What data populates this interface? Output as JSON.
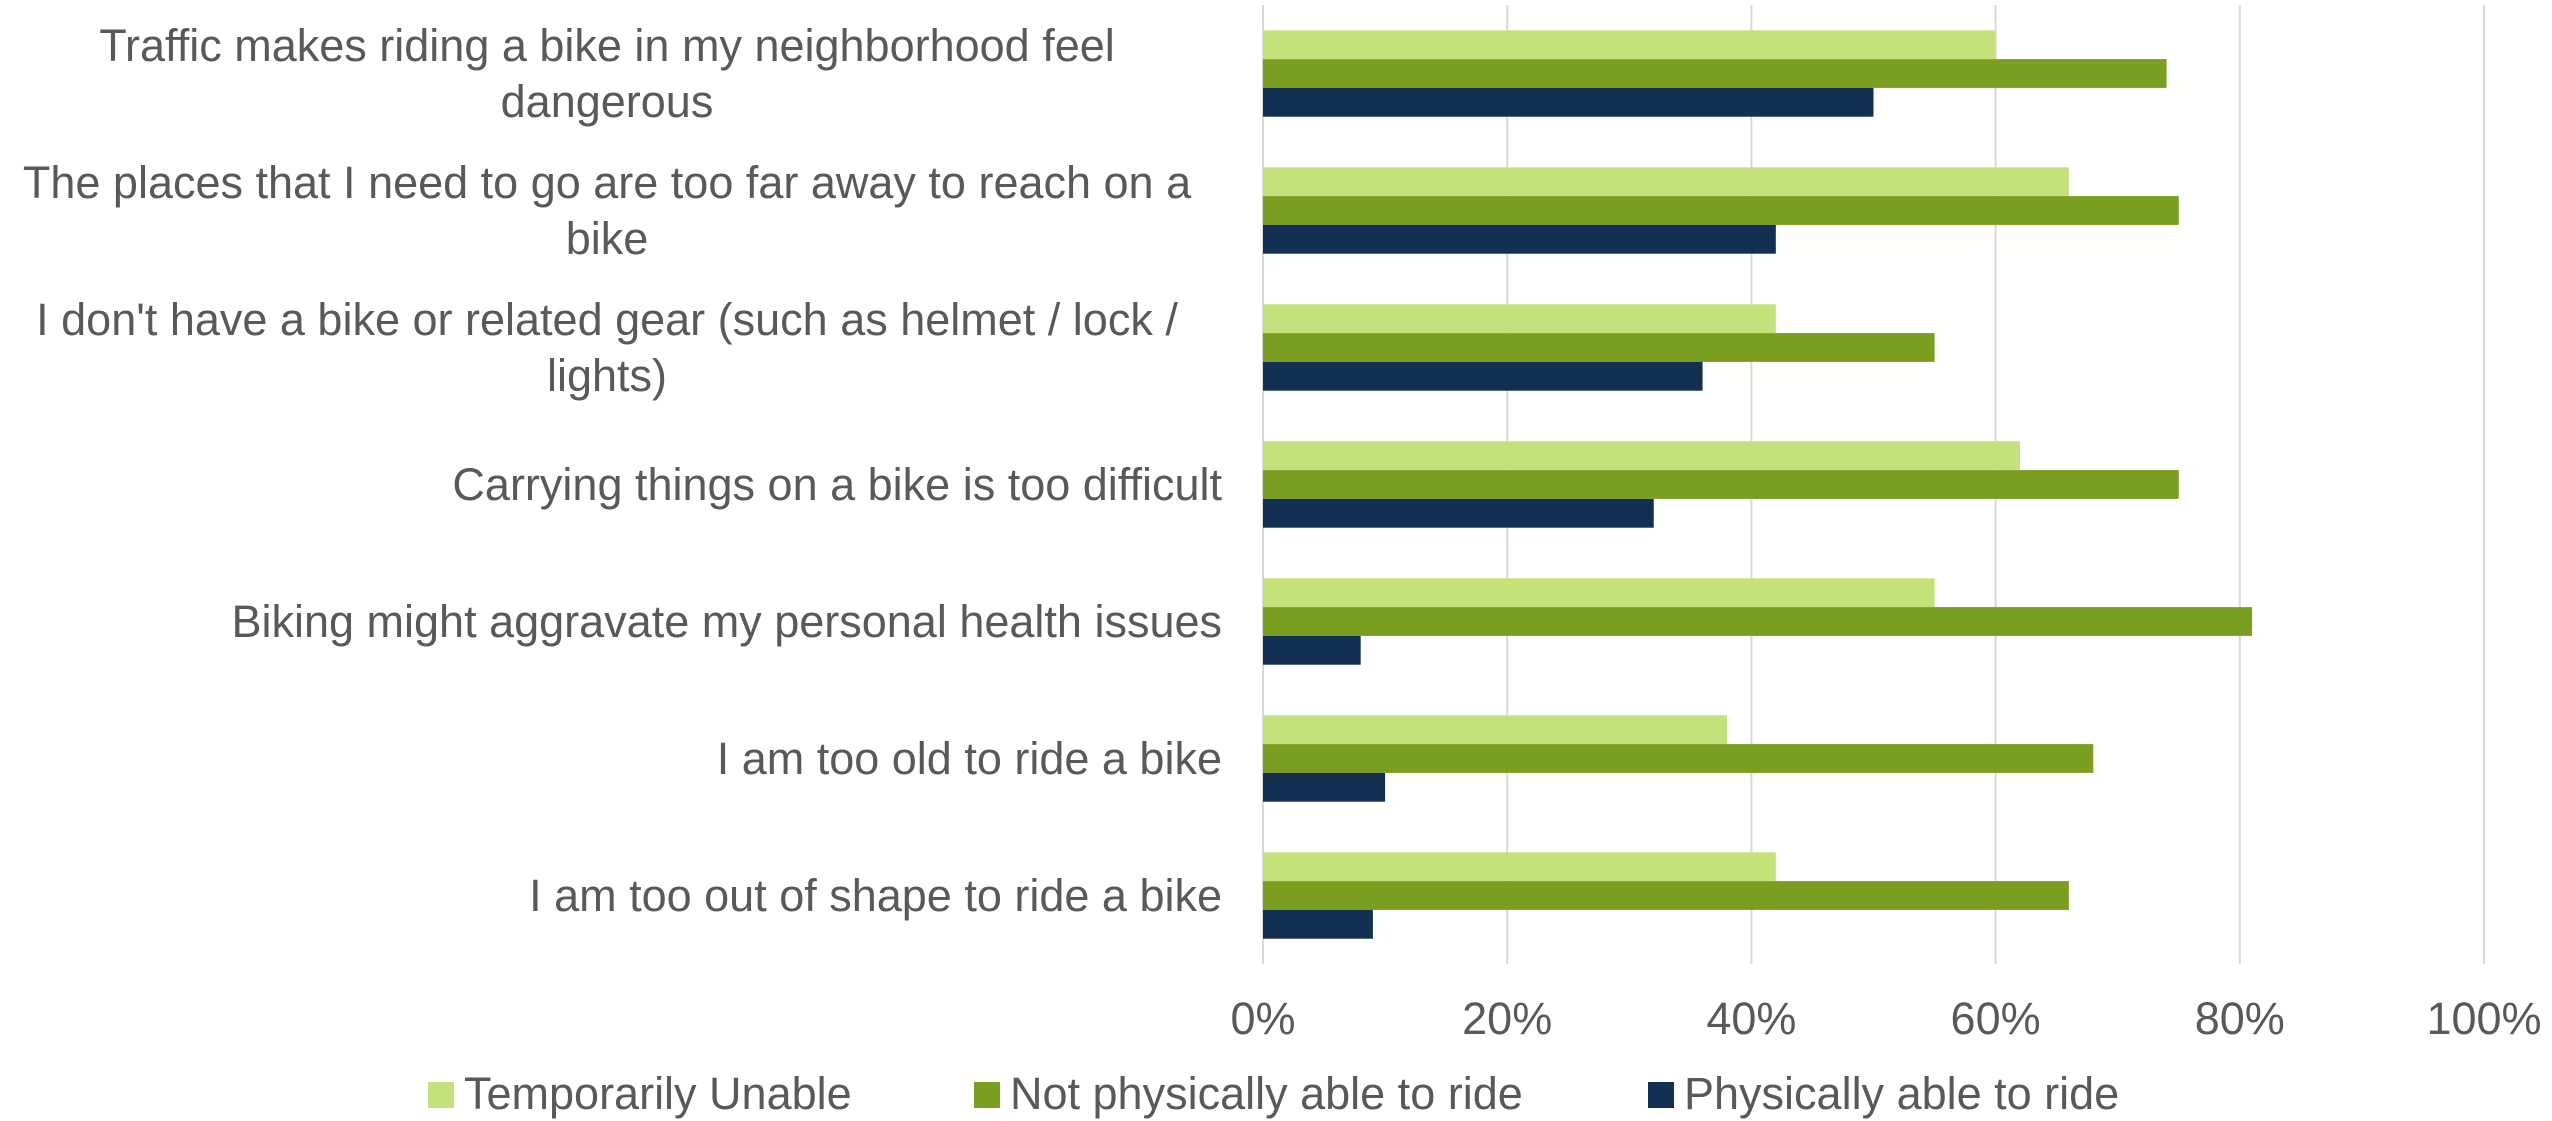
{
  "chart_data": {
    "type": "barh",
    "categories": [
      "Traffic makes riding a bike in my neighborhood feel dangerous",
      "The places that I need to go are too far away to reach on a bike",
      "I don't have a bike or related gear (such as helmet / lock / lights)",
      "Carrying things on a bike is too difficult",
      "Biking might aggravate my personal health issues",
      "I am too old to ride a bike",
      "I am too out of shape to ride a bike"
    ],
    "series": [
      {
        "name": "Temporarily Unable",
        "color": "#c5e17a",
        "values": [
          60,
          66,
          42,
          62,
          55,
          38,
          42
        ]
      },
      {
        "name": "Not physically able to ride",
        "color": "#7a9e1f",
        "values": [
          74,
          75,
          55,
          75,
          81,
          68,
          66
        ]
      },
      {
        "name": "Physically able to ride",
        "color": "#132f52",
        "values": [
          50,
          42,
          36,
          32,
          8,
          10,
          9
        ]
      }
    ],
    "xlim": [
      0,
      100
    ],
    "xticks": [
      {
        "value": 0,
        "label": "0%"
      },
      {
        "value": 20,
        "label": "20%"
      },
      {
        "value": 40,
        "label": "40%"
      },
      {
        "value": 60,
        "label": "60%"
      },
      {
        "value": 80,
        "label": "80%"
      },
      {
        "value": 100,
        "label": "100%"
      }
    ],
    "grid": true,
    "legend": "bottom"
  }
}
